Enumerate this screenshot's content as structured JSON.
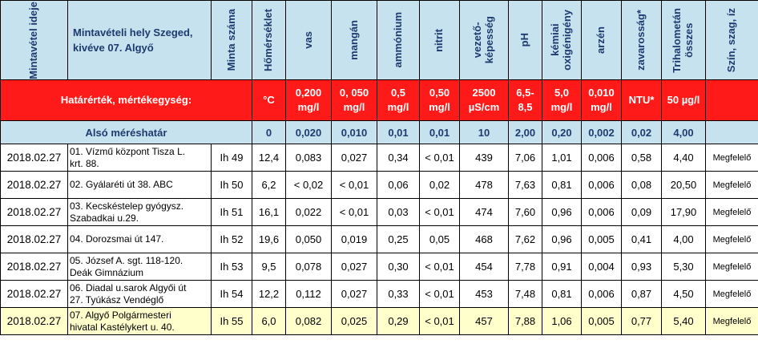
{
  "header": {
    "date": "Mintavétel ideje",
    "place_line1": "Mintavételi hely Szeged,",
    "place_line2": "kivéve 07. Algyő",
    "sample_no": "Minta száma",
    "temperature": "Hőmérséklet",
    "iron": "vas",
    "manganese": "mangán",
    "ammonium": "ammónium",
    "nitrite": "nitrit",
    "conductivity_line1": "vezető-",
    "conductivity_line2": "képesség",
    "ph": "pH",
    "cod_line1": "kémiai",
    "cod_line2": "oxigénigény",
    "arsenic": "arzén",
    "turbidity": "zavarosság*",
    "thm_line1": "Trihalometán",
    "thm_line2": "összes",
    "color": "Szín, szag, íz"
  },
  "limits": {
    "label": "Határérték, mértékegység:",
    "temperature": "°C",
    "iron": [
      "0,200",
      "mg/l"
    ],
    "manganese": [
      "0, 050",
      "mg/l"
    ],
    "ammonium": [
      "0,5",
      "mg/l"
    ],
    "nitrite": [
      "0,50",
      "mg/l"
    ],
    "conductivity": [
      "2500",
      "µS/cm"
    ],
    "ph": [
      "6,5-",
      "8,5"
    ],
    "cod": [
      "5,0",
      "mg/l"
    ],
    "arsenic": [
      "0,010",
      "mg/l"
    ],
    "turbidity": "NTU*",
    "thm": "50 µg/l"
  },
  "detection": {
    "label": "Alsó méréshatár",
    "values": [
      "0",
      "0,020",
      "0,010",
      "0,01",
      "0,01",
      "10",
      "2,00",
      "0,20",
      "0,002",
      "0,02",
      "4,00"
    ]
  },
  "rows": [
    {
      "date": "2018.02.27",
      "place": [
        "01. Vízmű központ Tisza L.",
        "krt. 88."
      ],
      "sample": "Ih 49",
      "values": [
        "12,4",
        "0,083",
        "0,027",
        "0,34",
        "< 0,01",
        "439",
        "7,06",
        "1,01",
        "0,006",
        "0,58",
        "4,40"
      ],
      "result": "Megfelelő"
    },
    {
      "date": "2018.02.27",
      "place": [
        "02. Gyálaréti út 38. ABC"
      ],
      "sample": "Ih 50",
      "values": [
        "6,2",
        "< 0,02",
        "< 0,01",
        "0,06",
        "0,02",
        "478",
        "7,63",
        "0,81",
        "0,006",
        "0,08",
        "20,50"
      ],
      "result": "Megfelelő"
    },
    {
      "date": "2018.02.27",
      "place": [
        "03. Kecskéstelep gyógysz.",
        "Szabadkai u.29."
      ],
      "sample": "Ih 51",
      "values": [
        "16,1",
        "0,022",
        "< 0,01",
        "0,03",
        "< 0,01",
        "474",
        "7,60",
        "0,96",
        "0,006",
        "0,09",
        "17,90"
      ],
      "result": "Megfelelő"
    },
    {
      "date": "2018.02.27",
      "place": [
        "04. Dorozsmai út 147."
      ],
      "sample": "Ih 52",
      "values": [
        "19,6",
        "0,050",
        "0,019",
        "0,25",
        "0,05",
        "468",
        "7,62",
        "0,96",
        "0,005",
        "0,41",
        "4,00"
      ],
      "result": "Megfelelő"
    },
    {
      "date": "2018.02.27",
      "place": [
        "05. József A. sgt. 118-120.",
        "Deák Gimnázium"
      ],
      "sample": "Ih 53",
      "values": [
        "9,5",
        "0,078",
        "0,027",
        "0,30",
        "< 0,01",
        "454",
        "7,78",
        "0,91",
        "0,004",
        "0,93",
        "5,30"
      ],
      "result": "Megfelelő"
    },
    {
      "date": "2018.02.27",
      "place": [
        "06. Diadal u.sarok Algyői út",
        "27. Tyúkász Vendéglő"
      ],
      "sample": "Ih 54",
      "values": [
        "12,2",
        "0,112",
        "0,027",
        "0,33",
        "< 0,01",
        "453",
        "7,48",
        "0,81",
        "0,006",
        "0,87",
        "4,50"
      ],
      "result": "Megfelelő"
    },
    {
      "date": "2018.02.27",
      "place": [
        "07. Algyő Polgármesteri",
        "hivatal Kastélykert u. 40."
      ],
      "sample": "Ih 55",
      "values": [
        "6,0",
        "0,082",
        "0,025",
        "0,29",
        "< 0,01",
        "457",
        "7,88",
        "1,06",
        "0,005",
        "0,77",
        "5,40"
      ],
      "result": "Megfelelő"
    }
  ],
  "colors": {
    "header_bg": "#c5e2ee",
    "header_text": "#1f3a6e",
    "limit_bg": "#ff1a1a",
    "highlight_row": "#ffffcc"
  }
}
